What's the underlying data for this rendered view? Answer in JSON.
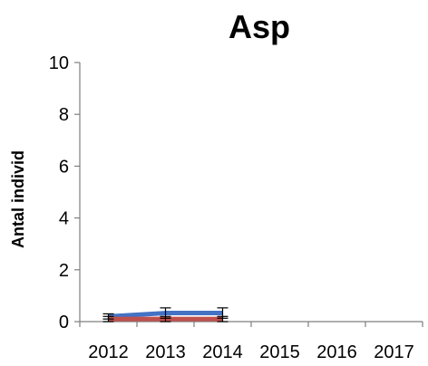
{
  "chart_data": {
    "type": "line",
    "title": "Asp",
    "xlabel": "",
    "ylabel": "Antal individ",
    "categories": [
      "2012",
      "2013",
      "2014",
      "2015",
      "2016",
      "2017"
    ],
    "ylim": [
      0,
      10
    ],
    "y_ticks": [
      "0",
      "2",
      "4",
      "6",
      "8",
      "10"
    ],
    "grid": false,
    "legend": "none",
    "series": [
      {
        "color": "#4472C4",
        "values": [
          0.2,
          0.33,
          0.33,
          null,
          null,
          null
        ],
        "error": [
          0.1,
          0.2,
          0.2,
          null,
          null,
          null
        ]
      },
      {
        "color": "#C0504D",
        "values": [
          0.1,
          0.1,
          0.1,
          null,
          null,
          null
        ],
        "error": [
          0.1,
          0.1,
          0.1,
          null,
          null,
          null
        ]
      }
    ],
    "colors": {
      "axis": "#7F7F7F",
      "errorbar": "#000000"
    }
  }
}
